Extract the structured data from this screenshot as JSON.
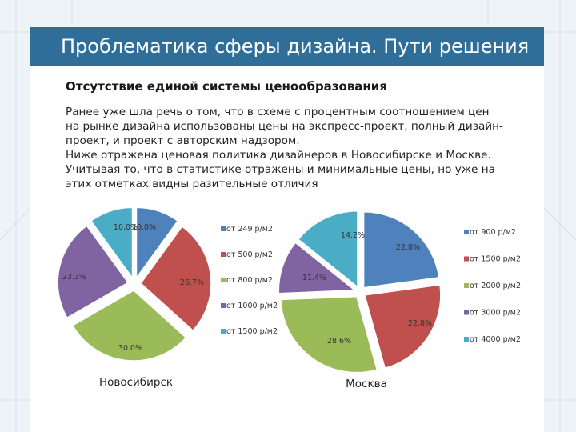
{
  "slide": {
    "title": "Проблематика сферы дизайна. Пути решения",
    "subtitle": "Отсутствие единой системы ценообразования",
    "paragraph_lines": [
      "Ранее уже шла речь о том, что в схеме с процентным соотношением цен",
      "на рынке дизайна использованы цены на экспресс-проект, полный дизайн-",
      "проект, и проект с авторским надзором.",
      "Ниже отражена ценовая политика дизайнеров в Новосибирске и Москве.",
      "Учитывая то, что в статистике отражены и минимальные цены, но уже на",
      "этих отметках видны разительные отличия"
    ]
  },
  "colors": {
    "blue": "#4f81bd",
    "red": "#c0504d",
    "green": "#9bbb59",
    "purple": "#8064a2",
    "aqua": "#4bacc6",
    "orange": "#f79646",
    "header": "#2f6e98"
  },
  "chart_data": [
    {
      "type": "pie",
      "title": "Новосибирск",
      "categories": [
        "от 249 р/м2",
        "от 500 р/м2",
        "от 800 р/м2",
        "от 1000 р/м2",
        "от 1500 р/м2"
      ],
      "values": [
        10.0,
        26.7,
        30.0,
        23.3,
        10.0
      ],
      "labels": [
        "10.0%",
        "26.7%",
        "30.0%",
        "23.3%",
        "10.0%"
      ],
      "series_colors": [
        "#4f81bd",
        "#c0504d",
        "#9bbb59",
        "#8064a2",
        "#4bacc6"
      ],
      "legend": "right"
    },
    {
      "type": "pie",
      "title": "Москва",
      "categories": [
        "от 900 р/м2",
        "от 1500 р/м2",
        "от 2000 р/м2",
        "от 3000 р/м2",
        "от 4000 р/м2"
      ],
      "values": [
        22.8,
        22.8,
        28.6,
        11.4,
        14.2
      ],
      "labels": [
        "22.8%",
        "22.8%",
        "28.6%",
        "11.4%",
        "14.2%"
      ],
      "series_colors": [
        "#4f81bd",
        "#c0504d",
        "#9bbb59",
        "#8064a2",
        "#4bacc6"
      ],
      "legend": "right"
    }
  ]
}
